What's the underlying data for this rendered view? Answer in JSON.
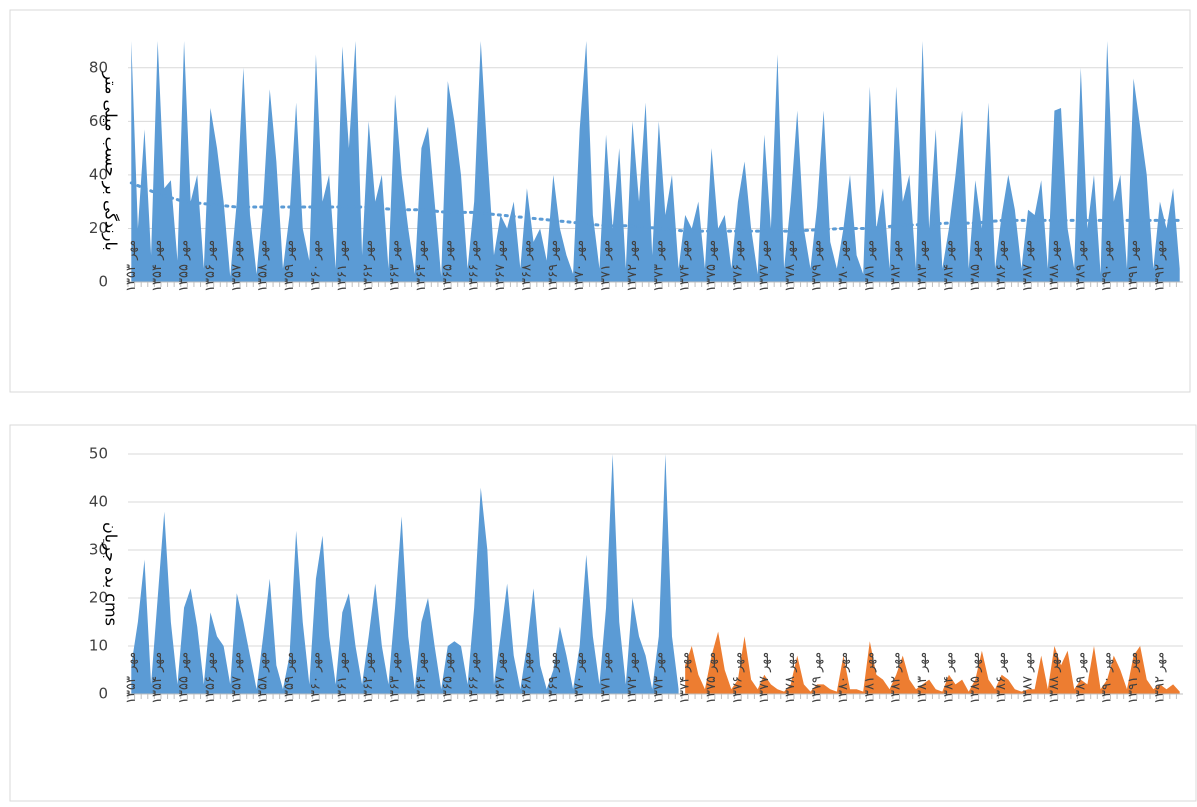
{
  "chart_data": [
    {
      "type": "area",
      "y_axis_title": "بارندگی بر حسب میلی متر",
      "categories": [
        "مهر ۱۳۵۳",
        null,
        null,
        null,
        "مهر ۱۳۵۴",
        null,
        null,
        null,
        "مهر ۱۳۵۵",
        null,
        null,
        null,
        "مهر ۱۳۵۶",
        null,
        null,
        null,
        "مهر ۱۳۵۷",
        null,
        null,
        null,
        "مهر ۱۳۵۸",
        null,
        null,
        null,
        "مهر ۱۳۵۹",
        null,
        null,
        null,
        "مهر ۱۳۶۰",
        null,
        null,
        null,
        "مهر ۱۳۶۱",
        null,
        null,
        null,
        "مهر ۱۳۶۲",
        null,
        null,
        null,
        "مهر ۱۳۶۳",
        null,
        null,
        null,
        "مهر ۱۳۶۴",
        null,
        null,
        null,
        "مهر ۱۳۶۵",
        null,
        null,
        null,
        "مهر ۱۳۶۶",
        null,
        null,
        null,
        "مهر ۱۳۶۷",
        null,
        null,
        null,
        "مهر ۱۳۶۸",
        null,
        null,
        null,
        "مهر ۱۳۶۹",
        null,
        null,
        null,
        "مهر ۱۳۷۰",
        null,
        null,
        null,
        "مهر ۱۳۷۱",
        null,
        null,
        null,
        "مهر ۱۳۷۲",
        null,
        null,
        null,
        "مهر ۱۳۷۳",
        null,
        null,
        null,
        "مهر ۱۳۷۴",
        null,
        null,
        null,
        "مهر ۱۳۷۵",
        null,
        null,
        null,
        "مهر ۱۳۷۶",
        null,
        null,
        null,
        "مهر ۱۳۷۷",
        null,
        null,
        null,
        "مهر ۱۳۷۸",
        null,
        null,
        null,
        "مهر ۱۳۷۹",
        null,
        null,
        null,
        "مهر ۱۳۸۰",
        null,
        null,
        null,
        "مهر ۱۳۸۱",
        null,
        null,
        null,
        "مهر ۱۳۸۲",
        null,
        null,
        null,
        "مهر ۱۳۸۳",
        null,
        null,
        null,
        "مهر ۱۳۸۴",
        null,
        null,
        null,
        "مهر ۱۳۸۵",
        null,
        null,
        null,
        "مهر ۱۳۸۶",
        null,
        null,
        null,
        "مهر ۱۳۸۷",
        null,
        null,
        null,
        "مهر ۱۳۸۸",
        null,
        null,
        null,
        "مهر ۱۳۸۹",
        null,
        null,
        null,
        "مهر ۱۳۹۰",
        null,
        null,
        null,
        "مهر ۱۳۹۱",
        null,
        null,
        null,
        "مهر ۱۳۹۲",
        null,
        null,
        null
      ],
      "series": [
        {
          "color": "#5b9bd5",
          "values": [
            90,
            20,
            57,
            10,
            90,
            35,
            38,
            8,
            90,
            30,
            40,
            5,
            65,
            50,
            30,
            2,
            30,
            80,
            25,
            3,
            30,
            72,
            45,
            5,
            25,
            67,
            20,
            8,
            85,
            30,
            40,
            5,
            88,
            50,
            90,
            10,
            60,
            30,
            40,
            5,
            70,
            40,
            20,
            3,
            50,
            58,
            30,
            2,
            75,
            60,
            40,
            5,
            30,
            90,
            48,
            10,
            25,
            20,
            30,
            5,
            35,
            15,
            20,
            8,
            40,
            20,
            10,
            3,
            57,
            90,
            25,
            5,
            55,
            20,
            50,
            5,
            60,
            30,
            67,
            10,
            60,
            25,
            40,
            5,
            25,
            20,
            30,
            5,
            50,
            20,
            25,
            5,
            30,
            45,
            20,
            3,
            55,
            20,
            85,
            5,
            30,
            64,
            20,
            5,
            28,
            64,
            15,
            5,
            20,
            40,
            10,
            3,
            73,
            20,
            35,
            5,
            73,
            30,
            40,
            5,
            90,
            20,
            57,
            5,
            20,
            40,
            64,
            5,
            38,
            20,
            67,
            5,
            25,
            40,
            27,
            5,
            27,
            25,
            38,
            5,
            64,
            65,
            20,
            5,
            80,
            20,
            40,
            3,
            90,
            30,
            40,
            5,
            76,
            58,
            40,
            5,
            30,
            20,
            35,
            5
          ]
        },
        {
          "type": "line",
          "style": "dotted",
          "color": "#5b9bd5",
          "x": [
            0,
            4,
            8,
            12,
            16,
            20,
            24,
            28,
            32,
            36,
            40,
            44,
            48,
            52,
            56,
            60,
            64,
            68,
            72,
            76,
            80,
            84,
            88,
            92,
            96,
            100,
            104,
            108,
            112,
            116,
            120,
            124,
            128,
            132,
            136,
            140,
            144,
            148,
            152,
            159
          ],
          "values": [
            37,
            33,
            30,
            29,
            28,
            28,
            28,
            28,
            28,
            28,
            27,
            27,
            26,
            26,
            25,
            24,
            23,
            22,
            21,
            21,
            20,
            19,
            19,
            19,
            19,
            19,
            19.5,
            20,
            20,
            21,
            21.5,
            22,
            22,
            23,
            23,
            23,
            23,
            23,
            23,
            23
          ]
        }
      ],
      "ylim": [
        0,
        90
      ],
      "yticks": [
        0,
        20,
        40,
        60,
        80
      ],
      "grid": true
    },
    {
      "type": "area",
      "y_axis_title": "بده جریان cms",
      "categories": [
        "مهر ۱۳۵۳",
        null,
        null,
        null,
        "مهر ۱۳۵۴",
        null,
        null,
        null,
        "مهر ۱۳۵۵",
        null,
        null,
        null,
        "مهر ۱۳۵۶",
        null,
        null,
        null,
        "مهر ۱۳۵۷",
        null,
        null,
        null,
        "مهر ۱۳۵۸",
        null,
        null,
        null,
        "مهر ۱۳۵۹",
        null,
        null,
        null,
        "مهر ۱۳۶۰",
        null,
        null,
        null,
        "مهر ۱۳۶۱",
        null,
        null,
        null,
        "مهر ۱۳۶۲",
        null,
        null,
        null,
        "مهر ۱۳۶۳",
        null,
        null,
        null,
        "مهر ۱۳۶۴",
        null,
        null,
        null,
        "مهر ۱۳۶۵",
        null,
        null,
        null,
        "مهر ۱۳۶۶",
        null,
        null,
        null,
        "مهر ۱۳۶۷",
        null,
        null,
        null,
        "مهر ۱۳۶۸",
        null,
        null,
        null,
        "مهر ۱۳۶۹",
        null,
        null,
        null,
        "مهر ۱۳۷۰",
        null,
        null,
        null,
        "مهر ۱۳۷۱",
        null,
        null,
        null,
        "مهر ۱۳۷۲",
        null,
        null,
        null,
        "مهر ۱۳۷۳",
        null,
        null,
        null,
        "مهر ۱۳۷۴",
        null,
        null,
        null,
        "مهر ۱۳۷۵",
        null,
        null,
        null,
        "مهر ۱۳۷۶",
        null,
        null,
        null,
        "مهر ۱۳۷۷",
        null,
        null,
        null,
        "مهر ۱۳۷۸",
        null,
        null,
        null,
        "مهر ۱۳۷۹",
        null,
        null,
        null,
        "مهر ۱۳۸۰",
        null,
        null,
        null,
        "مهر ۱۳۸۱",
        null,
        null,
        null,
        "مهر ۱۳۸۲",
        null,
        null,
        null,
        "مهر ۱۳۸۳",
        null,
        null,
        null,
        "مهر ۱۳۸۴",
        null,
        null,
        null,
        "مهر ۱۳۸۵",
        null,
        null,
        null,
        "مهر ۱۳۸۶",
        null,
        null,
        null,
        "مهر ۱۳۸۷",
        null,
        null,
        null,
        "مهر ۱۳۸۸",
        null,
        null,
        null,
        "مهر ۱۳۸۹",
        null,
        null,
        null,
        "مهر ۱۳۹۰",
        null,
        null,
        null,
        "مهر ۱۳۹۱",
        null,
        null,
        null,
        "مهر ۱۳۹۲",
        null,
        null,
        null
      ],
      "series": [
        {
          "color": "#5b9bd5",
          "values": [
            6,
            15,
            28,
            2,
            20,
            38,
            15,
            2,
            18,
            22,
            14,
            2,
            17,
            12,
            10,
            2,
            21,
            15,
            8,
            1,
            12,
            24,
            6,
            1,
            8,
            34,
            15,
            2,
            24,
            33,
            12,
            2,
            17,
            21,
            10,
            2,
            12,
            23,
            10,
            2,
            18,
            37,
            12,
            1,
            15,
            20,
            10,
            1,
            10,
            11,
            10,
            2,
            18,
            43,
            30,
            2,
            12,
            23,
            8,
            1,
            10,
            22,
            6,
            1,
            5,
            14,
            8,
            1,
            10,
            29,
            12,
            2,
            18,
            50,
            15,
            2,
            20,
            12,
            8,
            1,
            12,
            50,
            12,
            1,
            null,
            null,
            null,
            null,
            null,
            null,
            null,
            null,
            null,
            null,
            null,
            null,
            null,
            null,
            null,
            null,
            null,
            null,
            null,
            null,
            null,
            null,
            null,
            null,
            null,
            null,
            null,
            null,
            null,
            null,
            null,
            null,
            null,
            null,
            null,
            null,
            null,
            null,
            null,
            null,
            null,
            null,
            null,
            null,
            null,
            null,
            null,
            null,
            null,
            null,
            null,
            null,
            null,
            null,
            null,
            null,
            null,
            null,
            null,
            null,
            null,
            null,
            null,
            null,
            null,
            null,
            null,
            null,
            null,
            null,
            null,
            null,
            null,
            null,
            null,
            null
          ]
        },
        {
          "color": "#ed7d31",
          "values": [
            null,
            null,
            null,
            null,
            null,
            null,
            null,
            null,
            null,
            null,
            null,
            null,
            null,
            null,
            null,
            null,
            null,
            null,
            null,
            null,
            null,
            null,
            null,
            null,
            null,
            null,
            null,
            null,
            null,
            null,
            null,
            null,
            null,
            null,
            null,
            null,
            null,
            null,
            null,
            null,
            null,
            null,
            null,
            null,
            null,
            null,
            null,
            null,
            null,
            null,
            null,
            null,
            null,
            null,
            null,
            null,
            null,
            null,
            null,
            null,
            null,
            null,
            null,
            null,
            null,
            null,
            null,
            null,
            null,
            null,
            null,
            null,
            null,
            null,
            null,
            null,
            null,
            null,
            null,
            null,
            null,
            null,
            null,
            null,
            6,
            10,
            4,
            1,
            8,
            13,
            5,
            1,
            3,
            12,
            3,
            1,
            4,
            2,
            1,
            0.5,
            2,
            8,
            2,
            0.5,
            2,
            2,
            1,
            0.5,
            8,
            1,
            1,
            0.5,
            11,
            4,
            3,
            1,
            4,
            8,
            3,
            1,
            2,
            3,
            1,
            0.5,
            4,
            2,
            3,
            0.5,
            3,
            9,
            3,
            1,
            4,
            3,
            1,
            0.5,
            1,
            1,
            8,
            1,
            10,
            6,
            9,
            1,
            3,
            2,
            10,
            1,
            3,
            8,
            5,
            1,
            8,
            10,
            3,
            1,
            2,
            1,
            2,
            0.5
          ]
        }
      ],
      "ylim": [
        0,
        50
      ],
      "yticks": [
        0,
        10,
        20,
        30,
        40,
        50
      ],
      "grid": true
    }
  ]
}
